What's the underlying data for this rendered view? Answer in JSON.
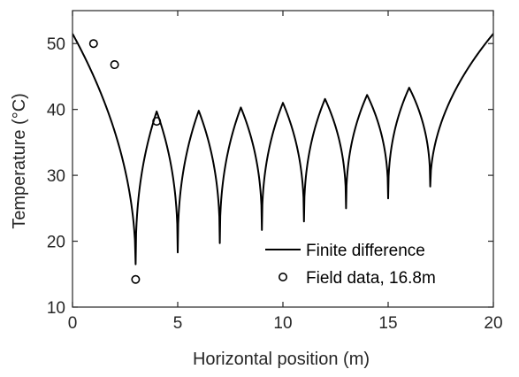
{
  "chart_data": {
    "type": "line",
    "xlabel": "Horizontal position (m)",
    "ylabel": "Temperature (°C)",
    "xlim": [
      0,
      20
    ],
    "ylim": [
      10,
      55
    ],
    "xticks": [
      0,
      5,
      10,
      15,
      20
    ],
    "yticks": [
      10,
      20,
      30,
      40,
      50
    ],
    "grid": false,
    "legend_position": "bottom-right",
    "series": [
      {
        "name": "Finite difference",
        "style": "line",
        "color": "#000000",
        "wells": [
          3,
          5,
          7,
          9,
          11,
          13,
          15,
          17
        ],
        "well_minima": [
          16.5,
          18.3,
          19.7,
          21.7,
          23.0,
          25.0,
          26.5,
          28.3
        ],
        "peaks": [
          {
            "x": 0,
            "y": 51.5
          },
          {
            "x": 4,
            "y": 39.7
          },
          {
            "x": 6,
            "y": 39.8
          },
          {
            "x": 8,
            "y": 40.3
          },
          {
            "x": 10,
            "y": 41.0
          },
          {
            "x": 12,
            "y": 41.6
          },
          {
            "x": 14,
            "y": 42.2
          },
          {
            "x": 16,
            "y": 43.3
          },
          {
            "x": 20,
            "y": 51.5
          }
        ]
      },
      {
        "name": "Field data, 16.8m",
        "style": "marker-open-circle",
        "color": "#000000",
        "points": [
          {
            "x": 1,
            "y": 50.0
          },
          {
            "x": 2,
            "y": 46.8
          },
          {
            "x": 3,
            "y": 14.2
          },
          {
            "x": 4,
            "y": 38.2
          }
        ]
      }
    ]
  }
}
